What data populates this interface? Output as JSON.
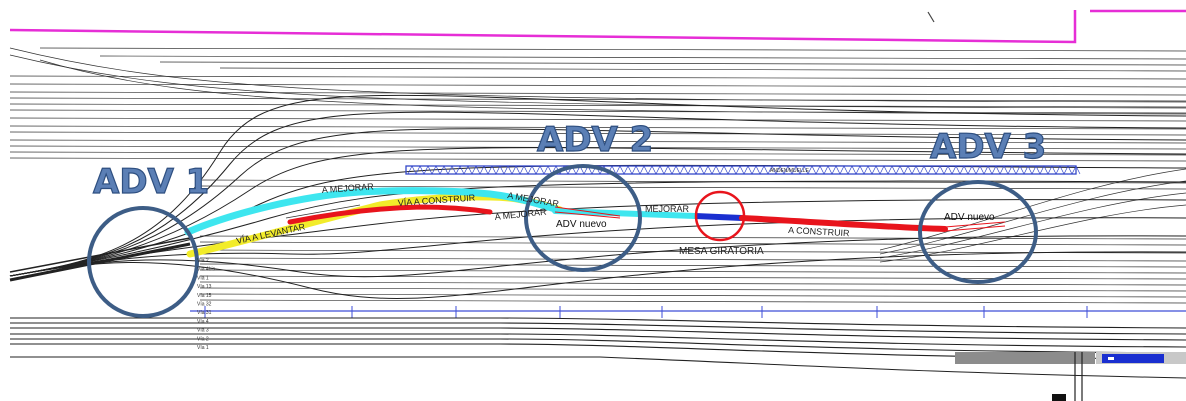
{
  "adv_labels": {
    "adv1": "ADV 1",
    "adv2": "ADV 2",
    "adv3": "ADV 3"
  },
  "annotations": {
    "a_mejorar_left": "A MEJORAR",
    "via_a_construir": "VÍA A CONSTRUIR",
    "via_a_levantar": "VÍA A LEVANTAR",
    "a_mejorar_mid": "A MEJORAR",
    "a_mejorar_mid2": "A MEJORAR",
    "adv_nuevo_left": "ADV nuevo",
    "mejorar_right": "MEJORAR",
    "mesa_giratoria": "MESA GIRATORIA",
    "a_construir": "A CONSTRUIR",
    "adv_nuevo_right": "ADV nuevo"
  },
  "track_labels": [
    "Vía 2",
    "Vía 4bis",
    "Vía 1",
    "Vía 13",
    "Vía 15",
    "Vía 32",
    "Vía 31",
    "Vía 4",
    "Vía 3",
    "Vía 2",
    "Vía 1"
  ],
  "colors": {
    "cyan": "#3ee6ef",
    "yellow": "#f2ec2a",
    "red": "#e8141c",
    "blue": "#1a2fd0",
    "circle": "#3d5d86",
    "magenta": "#e62ed6",
    "hatch": "#3447c9",
    "track": "#333333"
  }
}
